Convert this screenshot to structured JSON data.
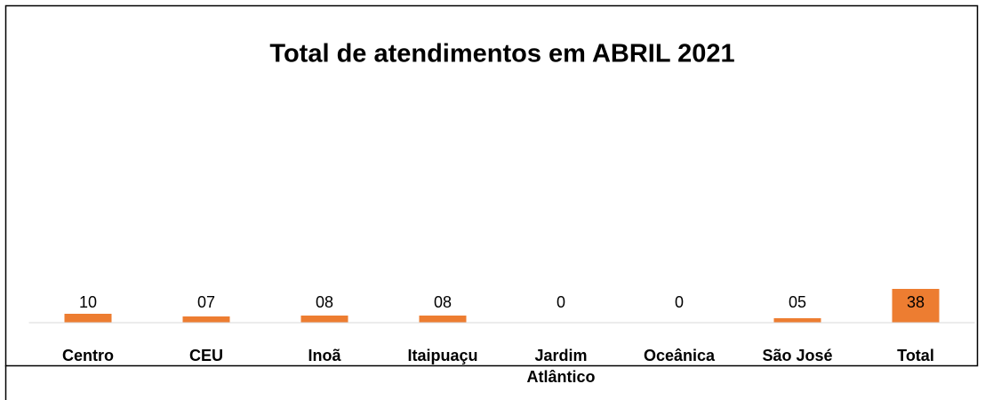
{
  "chart_data": {
    "type": "bar",
    "title": "Total de atendimentos em ABRIL 2021",
    "categories": [
      "Centro",
      "CEU",
      "Inoã",
      "Itaipuaçu",
      "Jardim Atlântico",
      "Oceânica",
      "São José",
      "Total"
    ],
    "values": [
      10,
      7,
      8,
      8,
      0,
      0,
      5,
      38
    ],
    "value_labels": [
      "10",
      "07",
      "08",
      "08",
      "0",
      "0",
      "05",
      "38"
    ],
    "color": "#ed7d31",
    "ylim": [
      0,
      100
    ]
  }
}
